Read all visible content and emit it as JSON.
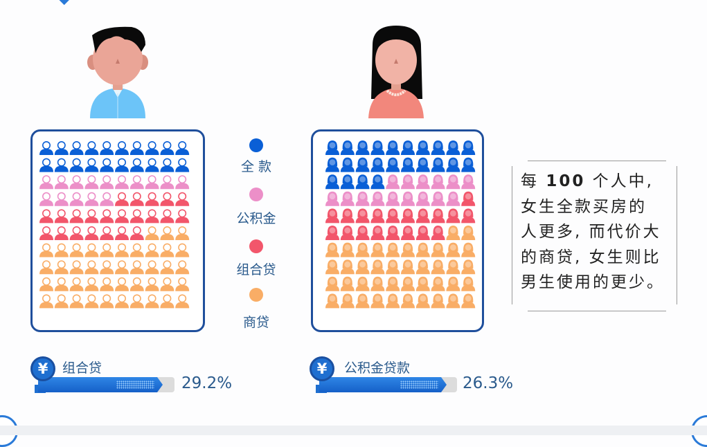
{
  "legend": {
    "items": [
      {
        "label": "全 款",
        "color": "#0a5fd6"
      },
      {
        "label": "公积金",
        "color": "#ec8fc8"
      },
      {
        "label": "组合贷",
        "color": "#f2566b"
      },
      {
        "label": "商贷",
        "color": "#f9ad66"
      }
    ]
  },
  "chart_data": {
    "type": "waffle",
    "grid": "10x10",
    "categories": [
      "全款",
      "公积金",
      "组合贷",
      "商贷"
    ],
    "series": [
      {
        "name": "male",
        "values": [
          20,
          15,
          22,
          43
        ]
      },
      {
        "name": "female",
        "values": [
          24,
          15,
          19,
          42
        ]
      }
    ]
  },
  "note": {
    "lines": [
      "每 ",
      "100",
      " 个人中,",
      "女生全款买房的",
      "人更多, 而代价大",
      "的商贷, 女生则比",
      "男生使用的更少。"
    ]
  },
  "bars": [
    {
      "label": "组合贷",
      "percent_text": "29.2%",
      "percent": 29.2,
      "icon": "yen-icon"
    },
    {
      "label": "公积金贷款",
      "percent_text": "26.3%",
      "percent": 26.3,
      "icon": "yen-icon"
    }
  ]
}
